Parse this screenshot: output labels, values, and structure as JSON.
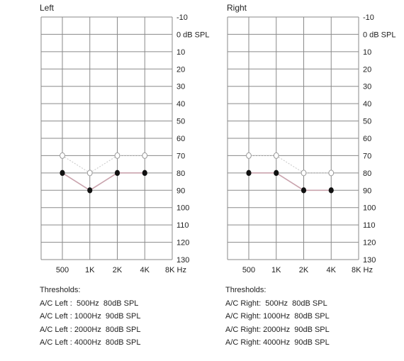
{
  "chart_data": [
    {
      "type": "line",
      "title": "Left",
      "x": [
        "500",
        "1K",
        "2K",
        "4K",
        "8K Hz"
      ],
      "y_ticks": [
        "-10",
        "0 dB SPL",
        "10",
        "20",
        "30",
        "40",
        "50",
        "60",
        "70",
        "80",
        "90",
        "100",
        "110",
        "120",
        "130"
      ],
      "ylim": [
        -10,
        130
      ],
      "y_inverted": true,
      "grid": true,
      "series": [
        {
          "marker": "open-circle",
          "values": [
            70,
            80,
            70,
            70,
            null
          ]
        },
        {
          "marker": "filled-circle",
          "values": [
            80,
            90,
            80,
            80,
            null
          ]
        }
      ],
      "thresholds_heading": "Thresholds:",
      "thresholds": [
        "A/C Left :  500Hz  80dB SPL",
        "A/C Left : 1000Hz  90dB SPL",
        "A/C Left : 2000Hz  80dB SPL",
        "A/C Left : 4000Hz  80dB SPL"
      ]
    },
    {
      "type": "line",
      "title": "Right",
      "x": [
        "500",
        "1K",
        "2K",
        "4K",
        "8K Hz"
      ],
      "y_ticks": [
        "-10",
        "0 dB SPL",
        "10",
        "20",
        "30",
        "40",
        "50",
        "60",
        "70",
        "80",
        "90",
        "100",
        "110",
        "120",
        "130"
      ],
      "ylim": [
        -10,
        130
      ],
      "y_inverted": true,
      "grid": true,
      "series": [
        {
          "marker": "open-circle",
          "values": [
            70,
            70,
            80,
            80,
            null
          ]
        },
        {
          "marker": "filled-circle",
          "values": [
            80,
            80,
            90,
            90,
            null
          ]
        }
      ],
      "thresholds_heading": "Thresholds:",
      "thresholds": [
        "A/C Right:  500Hz  80dB SPL",
        "A/C Right: 1000Hz  80dB SPL",
        "A/C Right: 2000Hz  90dB SPL",
        "A/C Right: 4000Hz  90dB SPL"
      ]
    }
  ],
  "colors": {
    "grid": "#8a8a8a",
    "marker_filled": "#111111",
    "marker_open_stroke": "#9a9a9a",
    "connector_filled": "#c9a3ad",
    "connector_open": "#c7c7c7"
  }
}
